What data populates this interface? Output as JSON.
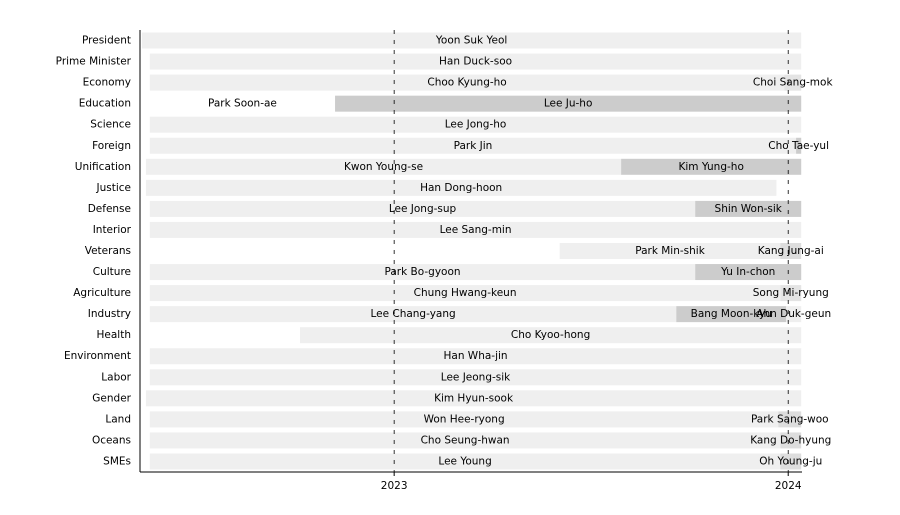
{
  "chart_data": {
    "type": "gantt",
    "xlim": [
      2022.355,
      2024.035
    ],
    "xticks": [
      2023,
      2024
    ],
    "grid": true,
    "rows": [
      {
        "name": "President",
        "terms": [
          {
            "name": "Yoon Suk Yeol",
            "start": 2022.36,
            "end": 2024.033,
            "color": "#efefef"
          }
        ]
      },
      {
        "name": "Prime Minister",
        "terms": [
          {
            "name": "Han Duck-soo",
            "start": 2022.38,
            "end": 2024.033,
            "color": "#efefef"
          }
        ]
      },
      {
        "name": "Economy",
        "terms": [
          {
            "name": "Choo Kyung-ho",
            "start": 2022.38,
            "end": 2023.99,
            "color": "#efefef"
          },
          {
            "name": "Choi Sang-mok",
            "start": 2023.99,
            "end": 2024.033,
            "color": "#e4e4e4"
          }
        ]
      },
      {
        "name": "Education",
        "terms": [
          {
            "name": "Park Soon-ae",
            "start": 2022.38,
            "end": 2022.85,
            "color": "#ffffff"
          },
          {
            "name": "Lee Ju-ho",
            "start": 2022.85,
            "end": 2024.033,
            "color": "#cccccc"
          }
        ]
      },
      {
        "name": "Science",
        "terms": [
          {
            "name": "Lee Jong-ho",
            "start": 2022.38,
            "end": 2024.033,
            "color": "#efefef"
          }
        ]
      },
      {
        "name": "Foreign",
        "terms": [
          {
            "name": "Park Jin",
            "start": 2022.38,
            "end": 2024.02,
            "color": "#efefef"
          },
          {
            "name": "Cho Tae-yul",
            "start": 2024.02,
            "end": 2024.033,
            "color": "#cccccc"
          }
        ]
      },
      {
        "name": "Unification",
        "terms": [
          {
            "name": "Kwon Young-se",
            "start": 2022.37,
            "end": 2023.576,
            "color": "#efefef"
          },
          {
            "name": "Kim Yung-ho",
            "start": 2023.576,
            "end": 2024.033,
            "color": "#cccccc"
          }
        ]
      },
      {
        "name": "Justice",
        "terms": [
          {
            "name": "Han Dong-hoon",
            "start": 2022.37,
            "end": 2023.97,
            "color": "#efefef"
          }
        ]
      },
      {
        "name": "Defense",
        "terms": [
          {
            "name": "Lee Jong-sup",
            "start": 2022.38,
            "end": 2023.764,
            "color": "#efefef"
          },
          {
            "name": "Shin Won-sik",
            "start": 2023.764,
            "end": 2024.033,
            "color": "#cccccc"
          }
        ]
      },
      {
        "name": "Interior",
        "terms": [
          {
            "name": "Lee Sang-min",
            "start": 2022.38,
            "end": 2024.033,
            "color": "#efefef"
          }
        ]
      },
      {
        "name": "Veterans",
        "terms": [
          {
            "name": "Park Min-shik",
            "start": 2023.42,
            "end": 2023.98,
            "color": "#efefef"
          },
          {
            "name": "Kang Jung-ai",
            "start": 2023.98,
            "end": 2024.033,
            "color": "#dddddd"
          }
        ]
      },
      {
        "name": "Culture",
        "terms": [
          {
            "name": "Park Bo-gyoon",
            "start": 2022.38,
            "end": 2023.764,
            "color": "#efefef"
          },
          {
            "name": "Yu In-chon",
            "start": 2023.764,
            "end": 2024.033,
            "color": "#cccccc"
          }
        ]
      },
      {
        "name": "Agriculture",
        "terms": [
          {
            "name": "Chung Hwang-keun",
            "start": 2022.38,
            "end": 2023.98,
            "color": "#efefef"
          },
          {
            "name": "Song Mi-ryung",
            "start": 2023.98,
            "end": 2024.033,
            "color": "#e4e4e4"
          }
        ]
      },
      {
        "name": "Industry",
        "terms": [
          {
            "name": "Lee Chang-yang",
            "start": 2022.38,
            "end": 2023.716,
            "color": "#efefef"
          },
          {
            "name": "Bang Moon-kyu",
            "start": 2023.716,
            "end": 2023.995,
            "color": "#cccccc"
          },
          {
            "name": "Ahn Duk-geun",
            "start": 2023.995,
            "end": 2024.033,
            "color": "#efefef"
          }
        ]
      },
      {
        "name": "Health",
        "terms": [
          {
            "name": "Cho Kyoo-hong",
            "start": 2022.761,
            "end": 2024.033,
            "color": "#efefef"
          }
        ]
      },
      {
        "name": "Environment",
        "terms": [
          {
            "name": "Han Wha-jin",
            "start": 2022.38,
            "end": 2024.033,
            "color": "#efefef"
          }
        ]
      },
      {
        "name": "Labor",
        "terms": [
          {
            "name": "Lee Jeong-sik",
            "start": 2022.38,
            "end": 2024.033,
            "color": "#efefef"
          }
        ]
      },
      {
        "name": "Gender",
        "terms": [
          {
            "name": "Kim Hyun-sook",
            "start": 2022.37,
            "end": 2024.033,
            "color": "#efefef"
          }
        ]
      },
      {
        "name": "Land",
        "terms": [
          {
            "name": "Won Hee-ryong",
            "start": 2022.38,
            "end": 2023.975,
            "color": "#efefef"
          },
          {
            "name": "Park Sang-woo",
            "start": 2023.975,
            "end": 2024.033,
            "color": "#dddddd"
          }
        ]
      },
      {
        "name": "Oceans",
        "terms": [
          {
            "name": "Cho Seung-hwan",
            "start": 2022.38,
            "end": 2023.98,
            "color": "#efefef"
          },
          {
            "name": "Kang Do-hyung",
            "start": 2023.98,
            "end": 2024.033,
            "color": "#dddddd"
          }
        ]
      },
      {
        "name": "SMEs",
        "terms": [
          {
            "name": "Lee Young",
            "start": 2022.38,
            "end": 2023.98,
            "color": "#efefef"
          },
          {
            "name": "Oh Young-ju",
            "start": 2023.98,
            "end": 2024.033,
            "color": "#dddddd"
          }
        ]
      }
    ]
  }
}
